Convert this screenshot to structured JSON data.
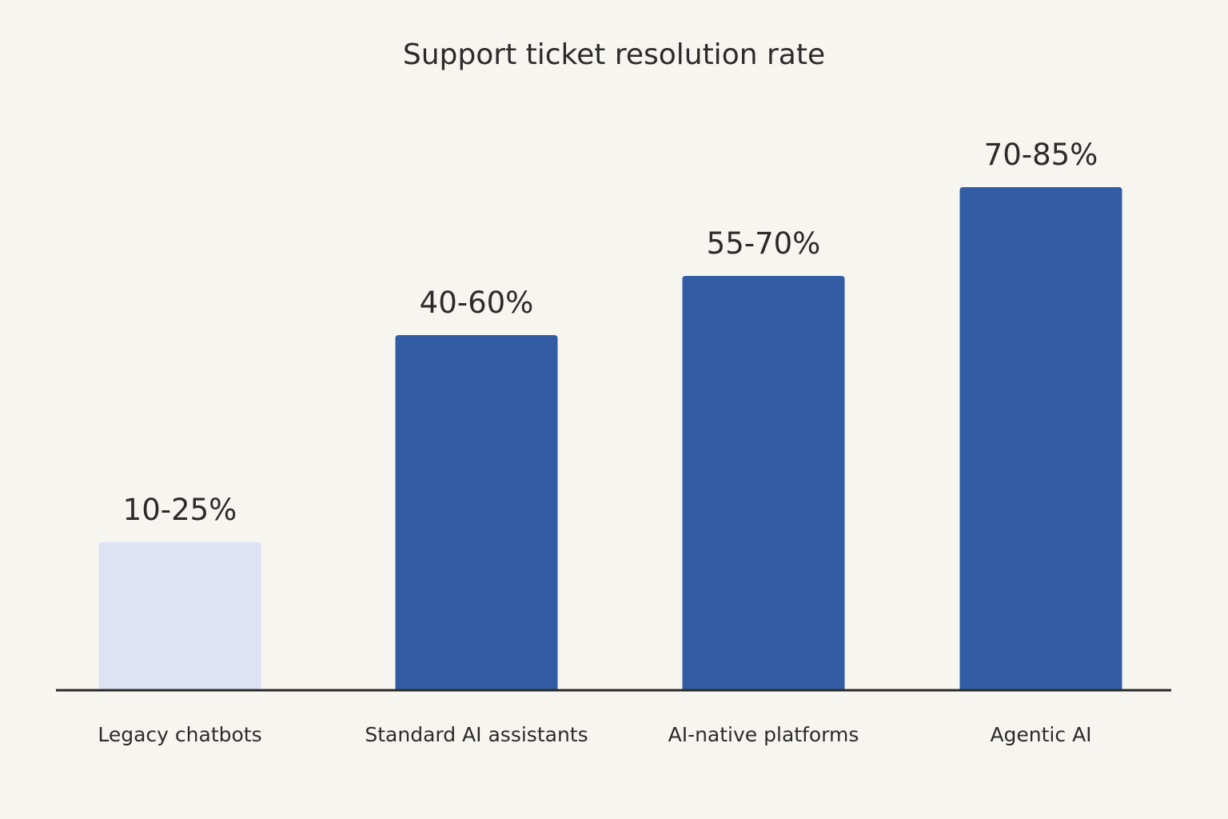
{
  "chart_data": {
    "type": "bar",
    "title": "Support ticket resolution rate",
    "xlabel": "",
    "ylabel": "",
    "ylim": [
      0,
      100
    ],
    "grid": false,
    "categories": [
      "Legacy chatbots",
      "Standard AI assistants",
      "AI-native platforms",
      "Agentic AI"
    ],
    "value_labels": [
      "10-25%",
      "40-60%",
      "55-70%",
      "70-85%"
    ],
    "ranges": [
      [
        10,
        25
      ],
      [
        40,
        60
      ],
      [
        55,
        70
      ],
      [
        70,
        85
      ]
    ],
    "values": [
      25,
      60,
      70,
      85
    ],
    "colors": [
      "#dde2f5",
      "#325ca3",
      "#325ca3",
      "#325ca3"
    ],
    "axis_color": "#2b2b2b"
  }
}
